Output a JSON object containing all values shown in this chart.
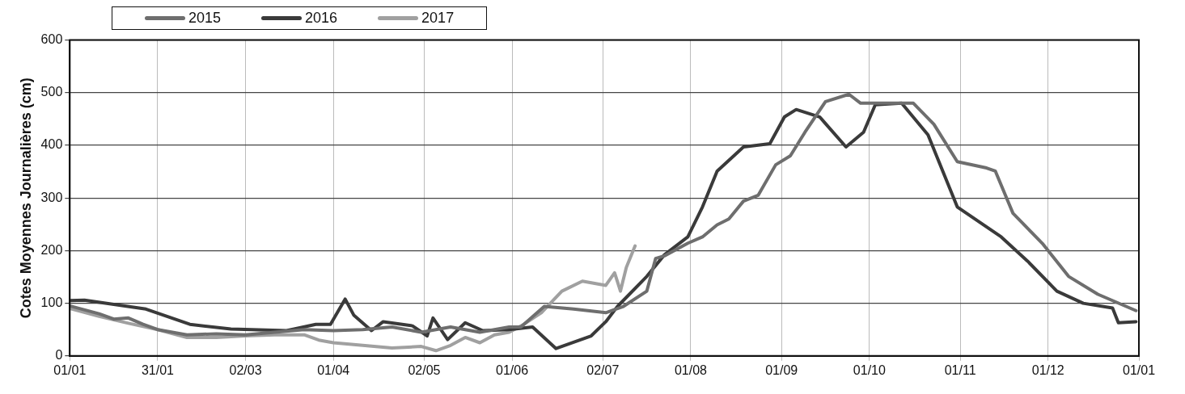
{
  "chart_data": {
    "type": "line",
    "ylabel": "Cotes Moyennes Journalières (cm)",
    "xlim": [
      "2015-01-01",
      "2016-01-01"
    ],
    "xticks": [
      {
        "value": "2015-01-01",
        "label": "01/01"
      },
      {
        "value": "2015-01-31",
        "label": "31/01"
      },
      {
        "value": "2015-03-02",
        "label": "02/03"
      },
      {
        "value": "2015-04-01",
        "label": "01/04"
      },
      {
        "value": "2015-05-02",
        "label": "02/05"
      },
      {
        "value": "2015-06-01",
        "label": "01/06"
      },
      {
        "value": "2015-07-02",
        "label": "02/07"
      },
      {
        "value": "2015-08-01",
        "label": "01/08"
      },
      {
        "value": "2015-09-01",
        "label": "01/09"
      },
      {
        "value": "2015-10-01",
        "label": "01/10"
      },
      {
        "value": "2015-11-01",
        "label": "01/11"
      },
      {
        "value": "2015-12-01",
        "label": "01/12"
      },
      {
        "value": "2016-01-01",
        "label": "01/01"
      }
    ],
    "ylim": [
      0,
      600
    ],
    "yticks": [
      0,
      100,
      200,
      300,
      400,
      500,
      600
    ],
    "grid": true,
    "legend": "top left",
    "marker": "none",
    "line_style": "solid",
    "series": [
      {
        "name": "2015",
        "color": "#6e6e6e",
        "x": [
          "2015-01-01",
          "2015-01-11",
          "2015-01-16",
          "2015-01-21",
          "2015-01-26",
          "2015-01-31",
          "2015-02-10",
          "2015-02-20",
          "2015-03-02",
          "2015-03-12",
          "2015-03-22",
          "2015-04-01",
          "2015-04-11",
          "2015-04-21",
          "2015-05-01",
          "2015-05-11",
          "2015-05-21",
          "2015-05-31",
          "2015-06-04",
          "2015-06-12",
          "2015-06-22",
          "2015-07-03",
          "2015-07-09",
          "2015-07-17",
          "2015-07-20",
          "2015-07-23",
          "2015-07-31",
          "2015-08-05",
          "2015-08-10",
          "2015-08-14",
          "2015-08-19",
          "2015-08-24",
          "2015-08-30",
          "2015-09-04",
          "2015-09-09",
          "2015-09-16",
          "2015-09-24",
          "2015-09-28",
          "2015-10-08",
          "2015-10-16",
          "2015-10-23",
          "2015-10-31",
          "2015-11-10",
          "2015-11-13",
          "2015-11-19",
          "2015-11-29",
          "2015-12-08",
          "2015-12-18",
          "2015-12-31"
        ],
        "values": [
          95,
          80,
          70,
          72,
          60,
          50,
          40,
          42,
          40,
          45,
          50,
          48,
          50,
          55,
          45,
          55,
          45,
          55,
          55,
          94,
          89,
          82,
          94,
          123,
          185,
          190,
          214,
          226,
          249,
          260,
          294,
          305,
          363,
          380,
          425,
          483,
          497,
          480,
          480,
          480,
          440,
          369,
          357,
          351,
          271,
          214,
          151,
          117,
          86
        ]
      },
      {
        "name": "2016",
        "color": "#3a3a3a",
        "x": [
          "2015-01-01",
          "2015-01-06",
          "2015-01-27",
          "2015-02-11",
          "2015-02-25",
          "2015-03-16",
          "2015-03-26",
          "2015-03-31",
          "2015-04-05",
          "2015-04-08",
          "2015-04-14",
          "2015-04-18",
          "2015-04-28",
          "2015-05-03",
          "2015-05-05",
          "2015-05-10",
          "2015-05-16",
          "2015-05-22",
          "2015-05-31",
          "2015-06-08",
          "2015-06-16",
          "2015-06-28",
          "2015-07-03",
          "2015-07-07",
          "2015-07-17",
          "2015-07-23",
          "2015-07-31",
          "2015-08-05",
          "2015-08-10",
          "2015-08-19",
          "2015-08-28",
          "2015-09-02",
          "2015-09-06",
          "2015-09-14",
          "2015-09-23",
          "2015-09-29",
          "2015-10-03",
          "2015-10-12",
          "2015-10-21",
          "2015-10-31",
          "2015-11-15",
          "2015-11-24",
          "2015-12-04",
          "2015-12-13",
          "2015-12-23",
          "2015-12-25",
          "2015-12-31"
        ],
        "values": [
          105,
          106,
          89,
          60,
          51,
          48,
          60,
          60,
          108,
          77,
          48,
          65,
          57,
          38,
          72,
          31,
          63,
          48,
          50,
          55,
          14,
          38,
          65,
          94,
          151,
          192,
          226,
          283,
          351,
          397,
          403,
          454,
          468,
          454,
          397,
          425,
          477,
          480,
          420,
          283,
          226,
          180,
          123,
          100,
          91,
          63,
          65
        ]
      },
      {
        "name": "2017",
        "color": "#a0a0a0",
        "x": [
          "2015-01-01",
          "2015-01-11",
          "2015-01-21",
          "2015-01-31",
          "2015-02-10",
          "2015-02-20",
          "2015-03-02",
          "2015-03-12",
          "2015-03-22",
          "2015-03-27",
          "2015-04-01",
          "2015-04-11",
          "2015-04-21",
          "2015-05-01",
          "2015-05-06",
          "2015-05-11",
          "2015-05-16",
          "2015-05-21",
          "2015-05-26",
          "2015-05-31",
          "2015-06-05",
          "2015-06-11",
          "2015-06-18",
          "2015-06-25",
          "2015-07-03",
          "2015-07-06",
          "2015-07-08",
          "2015-07-10",
          "2015-07-13"
        ],
        "values": [
          90,
          75,
          62,
          50,
          35,
          35,
          38,
          40,
          40,
          30,
          25,
          20,
          15,
          18,
          10,
          20,
          35,
          25,
          40,
          45,
          60,
          82,
          123,
          142,
          134,
          158,
          123,
          168,
          209
        ]
      }
    ]
  }
}
